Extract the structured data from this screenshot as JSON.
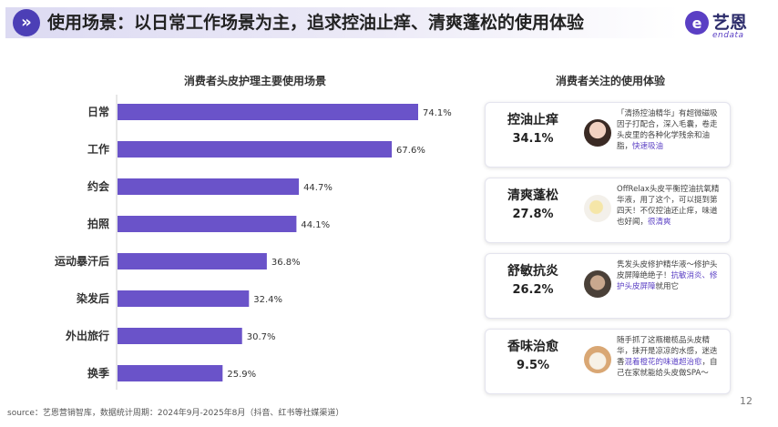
{
  "title": "使用场景：以日常工作场景为主，追求控油止痒、清爽蓬松的使用体验",
  "logo": {
    "cn": "艺恩",
    "en": "endata"
  },
  "left_panel": {
    "title": "消费者头皮护理主要使用场景"
  },
  "right_panel": {
    "title": "消费者关注的使用体验"
  },
  "chart_data": {
    "type": "bar",
    "orientation": "horizontal",
    "title": "消费者头皮护理主要使用场景",
    "categories": [
      "日常",
      "工作",
      "约会",
      "拍照",
      "运动暴汗后",
      "染发后",
      "外出旅行",
      "换季"
    ],
    "values": [
      74.1,
      67.6,
      44.7,
      44.1,
      36.8,
      32.4,
      30.7,
      25.9
    ],
    "value_labels": [
      "74.1%",
      "67.6%",
      "44.7%",
      "44.1%",
      "36.8%",
      "32.4%",
      "30.7%",
      "25.9%"
    ],
    "unit": "%",
    "xlim": [
      0,
      80
    ],
    "grid": false,
    "bar_color": "#6a53c9"
  },
  "experiences": [
    {
      "name": "控油止痒",
      "value": "34.1%",
      "quote_pre": "「清扬控油精华」有超微磁吸因子打配合，深入毛囊，卷走头皮里的各种化学残余和油脂，",
      "quote_hl": "快速吸油",
      "quote_post": "",
      "avatar_icon": "woman-portrait-icon"
    },
    {
      "name": "清爽蓬松",
      "value": "27.8%",
      "quote_pre": "OffRelax头皮平衡控油抗氧精华液，用了这个，可以挺到第四天！不仅控油还止痒，味道也好闻，",
      "quote_hl": "很清爽",
      "quote_post": "",
      "avatar_icon": "flower-icon"
    },
    {
      "name": "舒敏抗炎",
      "value": "26.2%",
      "quote_pre": "隽发头皮修护精华液～修护头皮屏障绝绝子！",
      "quote_hl": "抗敏消炎、修护头皮屏障",
      "quote_post": "就用它",
      "avatar_icon": "person-photo-icon"
    },
    {
      "name": "香味治愈",
      "value": "9.5%",
      "quote_pre": "随手抓了这瓶橄榄品头皮精华，抹开是凉凉的水感，迷迭香",
      "quote_hl": "混着橙花的味道超治愈",
      "quote_post": "，自己在家就能给头皮做SPA～",
      "avatar_icon": "cat-icon"
    }
  ],
  "footer": {
    "source": "source：艺恩营销智库，数据统计周期：2024年9月-2025年8月（抖音、红书等社媒渠道）",
    "page": "12"
  },
  "colors": {
    "accent": "#4c3fb6",
    "bar": "#6a53c9",
    "highlight": "#5a3fc4"
  }
}
